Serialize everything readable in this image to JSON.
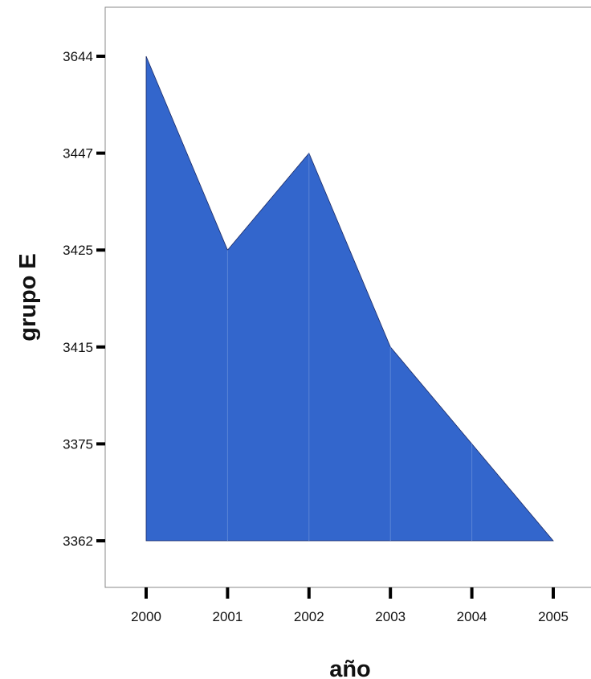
{
  "chart_data": {
    "type": "area",
    "title": "",
    "xlabel": "año",
    "ylabel": "grupo E",
    "x": [
      "2000",
      "2001",
      "2002",
      "2003",
      "2004",
      "2005"
    ],
    "y_ticks": [
      "3644",
      "3447",
      "3425",
      "3415",
      "3375",
      "3362"
    ],
    "series": [
      {
        "values": [
          "3644",
          "3425",
          "3447",
          "3415",
          "3375",
          "3362"
        ]
      }
    ],
    "y_axis_scale": "ordinal (equally spaced tick labels)",
    "grid": false,
    "legend": "none",
    "colors": {
      "fill": "#3366cc",
      "stroke": "#1a2a66",
      "divider": "#5b84d6",
      "frame": "#888888",
      "ticks": "#000000"
    }
  }
}
